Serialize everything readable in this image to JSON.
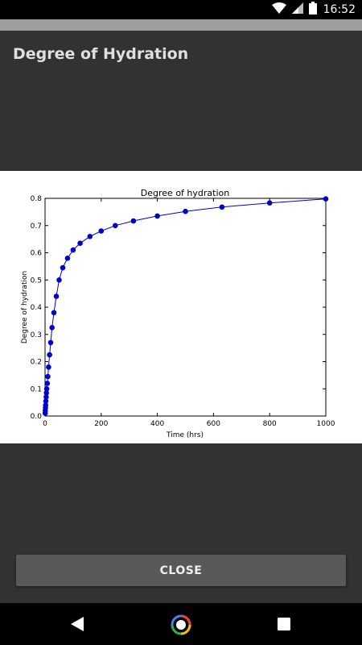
{
  "status_bar": {
    "time": "16:52",
    "icons": [
      "wifi-icon",
      "signal-icon",
      "battery-icon"
    ]
  },
  "dialog": {
    "title": "Degree of Hydration",
    "close_label": "CLOSE"
  },
  "colors": {
    "series": "#0000cc",
    "dialog_background": "#323232",
    "button": "#595959"
  },
  "nav": {
    "icons": [
      "back-icon",
      "home-icon",
      "recents-icon"
    ]
  },
  "chart_data": {
    "type": "line",
    "title": "Degree of hydration",
    "xlabel": "Time (hrs)",
    "ylabel": "Degree of hydration",
    "xlim": [
      0,
      1000
    ],
    "ylim": [
      0,
      0.8
    ],
    "xticks": [
      "0",
      "200",
      "400",
      "600",
      "800",
      "1000"
    ],
    "yticks": [
      "0.0",
      "0.1",
      "0.2",
      "0.3",
      "0.4",
      "0.5",
      "0.6",
      "0.7",
      "0.8"
    ],
    "grid": false,
    "series": [
      {
        "x": [
          0.5,
          1,
          1.5,
          2,
          3,
          4,
          5,
          6,
          8,
          10,
          12.5,
          16,
          20,
          25,
          31.5,
          40,
          50,
          63,
          80,
          100,
          125,
          160,
          200,
          250,
          315,
          400,
          500,
          630,
          800,
          1000
        ],
        "y": [
          0.01,
          0.02,
          0.03,
          0.04,
          0.055,
          0.07,
          0.085,
          0.1,
          0.12,
          0.145,
          0.18,
          0.225,
          0.27,
          0.325,
          0.38,
          0.44,
          0.5,
          0.545,
          0.58,
          0.61,
          0.635,
          0.66,
          0.68,
          0.7,
          0.717,
          0.735,
          0.752,
          0.768,
          0.783,
          0.798
        ]
      }
    ]
  }
}
